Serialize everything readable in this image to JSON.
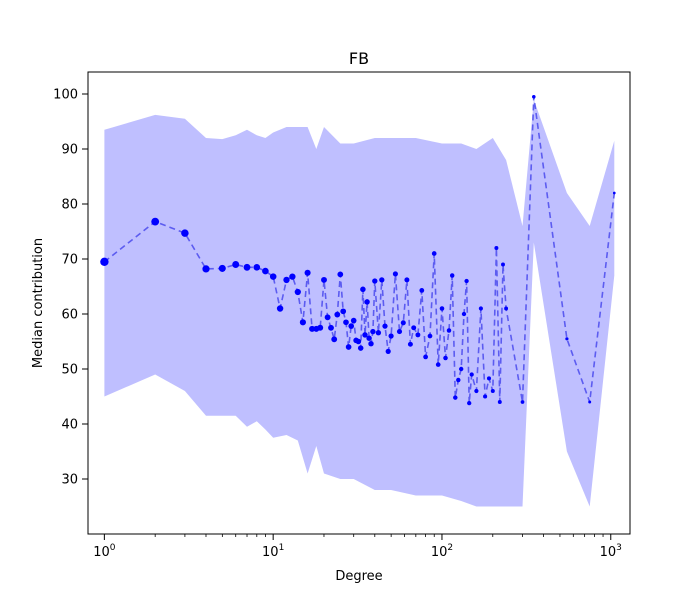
{
  "chart_data": {
    "type": "line",
    "title": "FB",
    "xlabel": "Degree",
    "ylabel": "Median contribution",
    "xscale": "log",
    "xlim": [
      0.8,
      1300
    ],
    "ylim": [
      20,
      104
    ],
    "grid": false,
    "x_tick_labels": [
      {
        "value": 1,
        "base": "10",
        "exp": "0"
      },
      {
        "value": 10,
        "base": "10",
        "exp": "1"
      },
      {
        "value": 100,
        "base": "10",
        "exp": "2"
      },
      {
        "value": 1000,
        "base": "10",
        "exp": "3"
      }
    ],
    "y_ticks": [
      30,
      40,
      50,
      60,
      70,
      80,
      90,
      100
    ],
    "colors": {
      "band": "#bfbfff",
      "line": "#5c5cf0",
      "marker": "#0000ff"
    },
    "band": {
      "x": [
        1,
        2,
        3,
        4,
        5,
        6,
        7,
        8,
        9,
        10,
        12,
        14,
        16,
        18,
        20,
        25,
        30,
        40,
        50,
        70,
        100,
        130,
        160,
        200,
        240,
        300,
        350,
        550,
        750,
        1050
      ],
      "upper": [
        93.5,
        96.2,
        95.5,
        92,
        91.8,
        92.5,
        93.5,
        92.5,
        92,
        93,
        94,
        94,
        94,
        90,
        94,
        91,
        91,
        92,
        92,
        92,
        91,
        91,
        90,
        92,
        88,
        76,
        99,
        82,
        76,
        91.5
      ],
      "lower": [
        45,
        49,
        46,
        41.5,
        41.5,
        41.5,
        39.5,
        40.5,
        39,
        37.5,
        38,
        37,
        31,
        36,
        31,
        30,
        30,
        28,
        28,
        27,
        27,
        26,
        25,
        25,
        25,
        25,
        73,
        35,
        25,
        67
      ]
    },
    "series": [
      {
        "x": [
          1,
          2,
          3,
          4,
          5,
          6,
          7,
          8,
          9,
          10,
          11,
          12,
          13,
          14,
          15,
          16,
          17,
          18,
          19,
          20,
          21,
          22,
          23,
          24,
          25,
          26,
          27,
          28,
          29,
          30,
          31,
          32,
          33,
          34,
          35,
          36,
          37,
          38,
          39,
          40,
          42,
          44,
          46,
          48,
          50,
          53,
          56,
          59,
          62,
          65,
          68,
          72,
          76,
          80,
          85,
          90,
          95,
          100,
          105,
          110,
          115,
          120,
          125,
          130,
          135,
          140,
          145,
          150,
          160,
          170,
          180,
          190,
          200,
          210,
          220,
          230,
          240,
          300,
          350,
          550,
          750,
          1050
        ],
        "y": [
          69.5,
          76.8,
          74.7,
          68.2,
          68.3,
          69,
          68.5,
          68.5,
          67.8,
          66.8,
          61,
          66.2,
          66.8,
          64,
          58.5,
          67.5,
          57.3,
          57.3,
          57.5,
          66.2,
          59.4,
          57.5,
          55.4,
          59.9,
          67.2,
          60.5,
          58.5,
          54,
          57.8,
          58.8,
          55.2,
          55,
          53.8,
          64.5,
          56.2,
          62.2,
          55.6,
          54.6,
          56.8,
          66,
          56.6,
          66.2,
          57.8,
          53.2,
          56,
          67.3,
          56.8,
          58.4,
          66.2,
          54.5,
          57.5,
          56.2,
          64.3,
          52.2,
          56,
          71,
          50.8,
          61,
          52,
          57,
          67,
          44.8,
          48,
          50,
          60,
          66,
          43.8,
          49,
          46,
          61,
          45,
          48.3,
          46,
          72,
          44,
          69,
          61,
          44,
          99.5,
          55.5,
          44,
          82
        ]
      }
    ]
  }
}
